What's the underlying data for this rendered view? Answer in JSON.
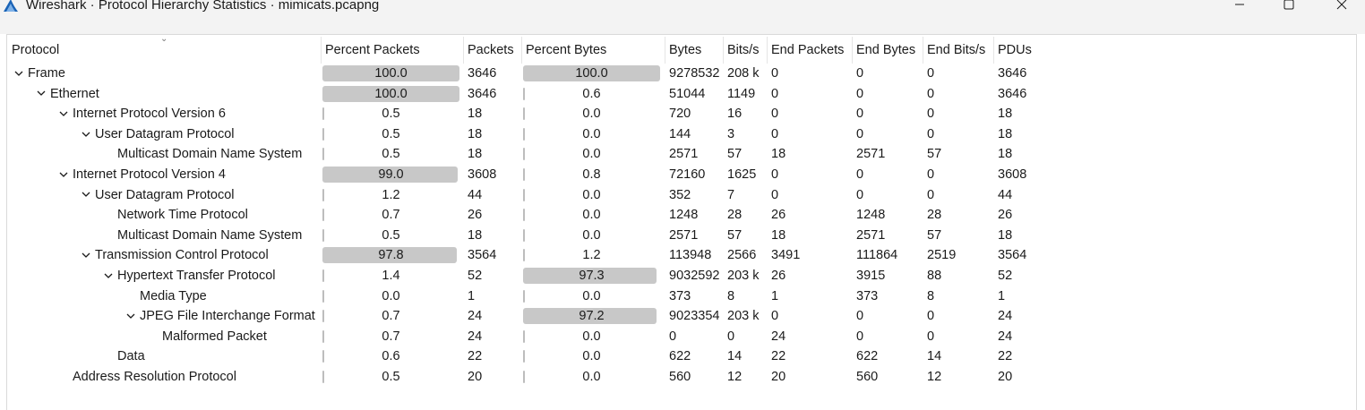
{
  "window": {
    "title": "Wireshark · Protocol Hierarchy Statistics · mimicats.pcapng",
    "icon": "wireshark-fin-icon",
    "controls": [
      "minimize-icon",
      "maximize-icon",
      "close-icon"
    ]
  },
  "columns": [
    "Protocol",
    "Percent Packets",
    "Packets",
    "Percent Bytes",
    "Bytes",
    "Bits/s",
    "End Packets",
    "End Bytes",
    "End Bits/s",
    "PDUs"
  ],
  "rows": [
    {
      "protocol": "Frame",
      "level": 0,
      "expander": "chevron-down",
      "pct_packets": "100.0",
      "pct_packets_fill": 100.0,
      "packets": "3646",
      "pct_bytes": "100.0",
      "pct_bytes_fill": 100.0,
      "bytes": "9278532",
      "bits_s": "208 k",
      "end_packets": "0",
      "end_bytes": "0",
      "end_bits_s": "0",
      "pdus": "3646"
    },
    {
      "protocol": "Ethernet",
      "level": 1,
      "expander": "chevron-down",
      "pct_packets": "100.0",
      "pct_packets_fill": 100.0,
      "packets": "3646",
      "pct_bytes": "0.6",
      "pct_bytes_fill": 0.6,
      "bytes": "51044",
      "bits_s": "1149",
      "end_packets": "0",
      "end_bytes": "0",
      "end_bits_s": "0",
      "pdus": "3646"
    },
    {
      "protocol": "Internet Protocol Version 6",
      "level": 2,
      "expander": "chevron-down",
      "pct_packets": "0.5",
      "pct_packets_fill": 0.5,
      "packets": "18",
      "pct_bytes": "0.0",
      "pct_bytes_fill": 0.0,
      "bytes": "720",
      "bits_s": "16",
      "end_packets": "0",
      "end_bytes": "0",
      "end_bits_s": "0",
      "pdus": "18"
    },
    {
      "protocol": "User Datagram Protocol",
      "level": 3,
      "expander": "chevron-down",
      "pct_packets": "0.5",
      "pct_packets_fill": 0.5,
      "packets": "18",
      "pct_bytes": "0.0",
      "pct_bytes_fill": 0.0,
      "bytes": "144",
      "bits_s": "3",
      "end_packets": "0",
      "end_bytes": "0",
      "end_bits_s": "0",
      "pdus": "18"
    },
    {
      "protocol": "Multicast Domain Name System",
      "level": 4,
      "expander": "",
      "pct_packets": "0.5",
      "pct_packets_fill": 0.5,
      "packets": "18",
      "pct_bytes": "0.0",
      "pct_bytes_fill": 0.0,
      "bytes": "2571",
      "bits_s": "57",
      "end_packets": "18",
      "end_bytes": "2571",
      "end_bits_s": "57",
      "pdus": "18"
    },
    {
      "protocol": "Internet Protocol Version 4",
      "level": 2,
      "expander": "chevron-down",
      "pct_packets": "99.0",
      "pct_packets_fill": 99.0,
      "packets": "3608",
      "pct_bytes": "0.8",
      "pct_bytes_fill": 0.8,
      "bytes": "72160",
      "bits_s": "1625",
      "end_packets": "0",
      "end_bytes": "0",
      "end_bits_s": "0",
      "pdus": "3608"
    },
    {
      "protocol": "User Datagram Protocol",
      "level": 3,
      "expander": "chevron-down",
      "pct_packets": "1.2",
      "pct_packets_fill": 1.2,
      "packets": "44",
      "pct_bytes": "0.0",
      "pct_bytes_fill": 0.0,
      "bytes": "352",
      "bits_s": "7",
      "end_packets": "0",
      "end_bytes": "0",
      "end_bits_s": "0",
      "pdus": "44"
    },
    {
      "protocol": "Network Time Protocol",
      "level": 4,
      "expander": "",
      "pct_packets": "0.7",
      "pct_packets_fill": 0.7,
      "packets": "26",
      "pct_bytes": "0.0",
      "pct_bytes_fill": 0.0,
      "bytes": "1248",
      "bits_s": "28",
      "end_packets": "26",
      "end_bytes": "1248",
      "end_bits_s": "28",
      "pdus": "26"
    },
    {
      "protocol": "Multicast Domain Name System",
      "level": 4,
      "expander": "",
      "pct_packets": "0.5",
      "pct_packets_fill": 0.5,
      "packets": "18",
      "pct_bytes": "0.0",
      "pct_bytes_fill": 0.0,
      "bytes": "2571",
      "bits_s": "57",
      "end_packets": "18",
      "end_bytes": "2571",
      "end_bits_s": "57",
      "pdus": "18"
    },
    {
      "protocol": "Transmission Control Protocol",
      "level": 3,
      "expander": "chevron-down",
      "pct_packets": "97.8",
      "pct_packets_fill": 97.8,
      "packets": "3564",
      "pct_bytes": "1.2",
      "pct_bytes_fill": 1.2,
      "bytes": "113948",
      "bits_s": "2566",
      "end_packets": "3491",
      "end_bytes": "111864",
      "end_bits_s": "2519",
      "pdus": "3564"
    },
    {
      "protocol": "Hypertext Transfer Protocol",
      "level": 4,
      "expander": "chevron-down",
      "pct_packets": "1.4",
      "pct_packets_fill": 1.4,
      "packets": "52",
      "pct_bytes": "97.3",
      "pct_bytes_fill": 97.3,
      "bytes": "9032592",
      "bits_s": "203 k",
      "end_packets": "26",
      "end_bytes": "3915",
      "end_bits_s": "88",
      "pdus": "52"
    },
    {
      "protocol": "Media Type",
      "level": 5,
      "expander": "",
      "pct_packets": "0.0",
      "pct_packets_fill": 0.0,
      "packets": "1",
      "pct_bytes": "0.0",
      "pct_bytes_fill": 0.0,
      "bytes": "373",
      "bits_s": "8",
      "end_packets": "1",
      "end_bytes": "373",
      "end_bits_s": "8",
      "pdus": "1"
    },
    {
      "protocol": "JPEG File Interchange Format",
      "level": 5,
      "expander": "chevron-down",
      "pct_packets": "0.7",
      "pct_packets_fill": 0.7,
      "packets": "24",
      "pct_bytes": "97.2",
      "pct_bytes_fill": 97.2,
      "bytes": "9023354",
      "bits_s": "203 k",
      "end_packets": "0",
      "end_bytes": "0",
      "end_bits_s": "0",
      "pdus": "24"
    },
    {
      "protocol": "Malformed Packet",
      "level": 6,
      "expander": "",
      "pct_packets": "0.7",
      "pct_packets_fill": 0.7,
      "packets": "24",
      "pct_bytes": "0.0",
      "pct_bytes_fill": 0.0,
      "bytes": "0",
      "bits_s": "0",
      "end_packets": "24",
      "end_bytes": "0",
      "end_bits_s": "0",
      "pdus": "24"
    },
    {
      "protocol": "Data",
      "level": 4,
      "expander": "",
      "pct_packets": "0.6",
      "pct_packets_fill": 0.6,
      "packets": "22",
      "pct_bytes": "0.0",
      "pct_bytes_fill": 0.0,
      "bytes": "622",
      "bits_s": "14",
      "end_packets": "22",
      "end_bytes": "622",
      "end_bits_s": "14",
      "pdus": "22"
    },
    {
      "protocol": "Address Resolution Protocol",
      "level": 2,
      "expander": "",
      "pct_packets": "0.5",
      "pct_packets_fill": 0.5,
      "packets": "20",
      "pct_bytes": "0.0",
      "pct_bytes_fill": 0.0,
      "bytes": "560",
      "bits_s": "12",
      "end_packets": "20",
      "end_bytes": "560",
      "end_bits_s": "12",
      "pdus": "20"
    }
  ],
  "colors": {
    "bar_fill": "#c8c8c8",
    "titlebar": "#f3f3f3",
    "border": "#d9d9d9"
  }
}
